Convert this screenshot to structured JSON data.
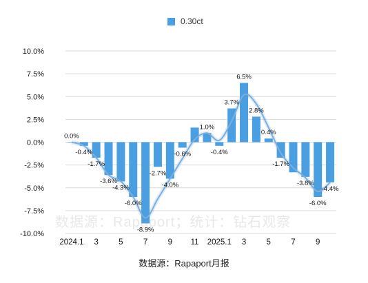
{
  "chart_data": {
    "type": "bar",
    "title": "",
    "xlabel": "",
    "ylabel": "",
    "ylim": [
      -10,
      10
    ],
    "y_ticks": [
      "10.0%",
      "7.5%",
      "5.0%",
      "2.5%",
      "0.0%",
      "-2.5%",
      "-5.0%",
      "-7.5%",
      "-10.0%"
    ],
    "y_tick_values": [
      10,
      7.5,
      5,
      2.5,
      0,
      -2.5,
      -5,
      -7.5,
      -10
    ],
    "x_tick_labels": [
      "2024.1",
      "3",
      "5",
      "7",
      "9",
      "11",
      "2025.1",
      "3",
      "5",
      "7",
      "9"
    ],
    "grid": true,
    "legend_position": "top-center",
    "series": [
      {
        "name": "0.30ct",
        "color": "#4a9fe3",
        "values": [
          0.0,
          -0.4,
          -1.7,
          -3.6,
          -4.3,
          -6.0,
          -8.9,
          -2.7,
          -4.0,
          -0.6,
          1.6,
          1.0,
          -0.4,
          3.7,
          6.5,
          2.8,
          0.4,
          -1.7,
          -3.3,
          -3.8,
          -6.0,
          -4.4
        ],
        "data_labels": [
          "0.0%",
          "-0.4%",
          "-1.7%",
          "-3.6%",
          "-4.3%",
          "-6.0%",
          "-8.9%",
          "-2.7%",
          "-4.0%",
          "-0.6%",
          "",
          "1.0%",
          "-0.4%",
          "3.7%",
          "6.5%",
          "2.8%",
          "0.4%",
          "-1.7%",
          "",
          "-3.8%",
          "-6.0%",
          "-4.4%"
        ]
      }
    ],
    "trendline": {
      "color": "#6fb2ec",
      "values": [
        0.0,
        -0.4,
        -1.7,
        -3.6,
        -4.3,
        -6.0,
        -8.3,
        -6.2,
        -4.0,
        -1.8,
        0.3,
        1.0,
        0.2,
        2.3,
        5.2,
        4.2,
        1.6,
        -1.2,
        -2.8,
        -3.9,
        -5.4,
        -4.4
      ]
    },
    "watermark": "数据源：Rapaport；统计：钻石观察",
    "source": "数据源：Rapaport月报"
  }
}
